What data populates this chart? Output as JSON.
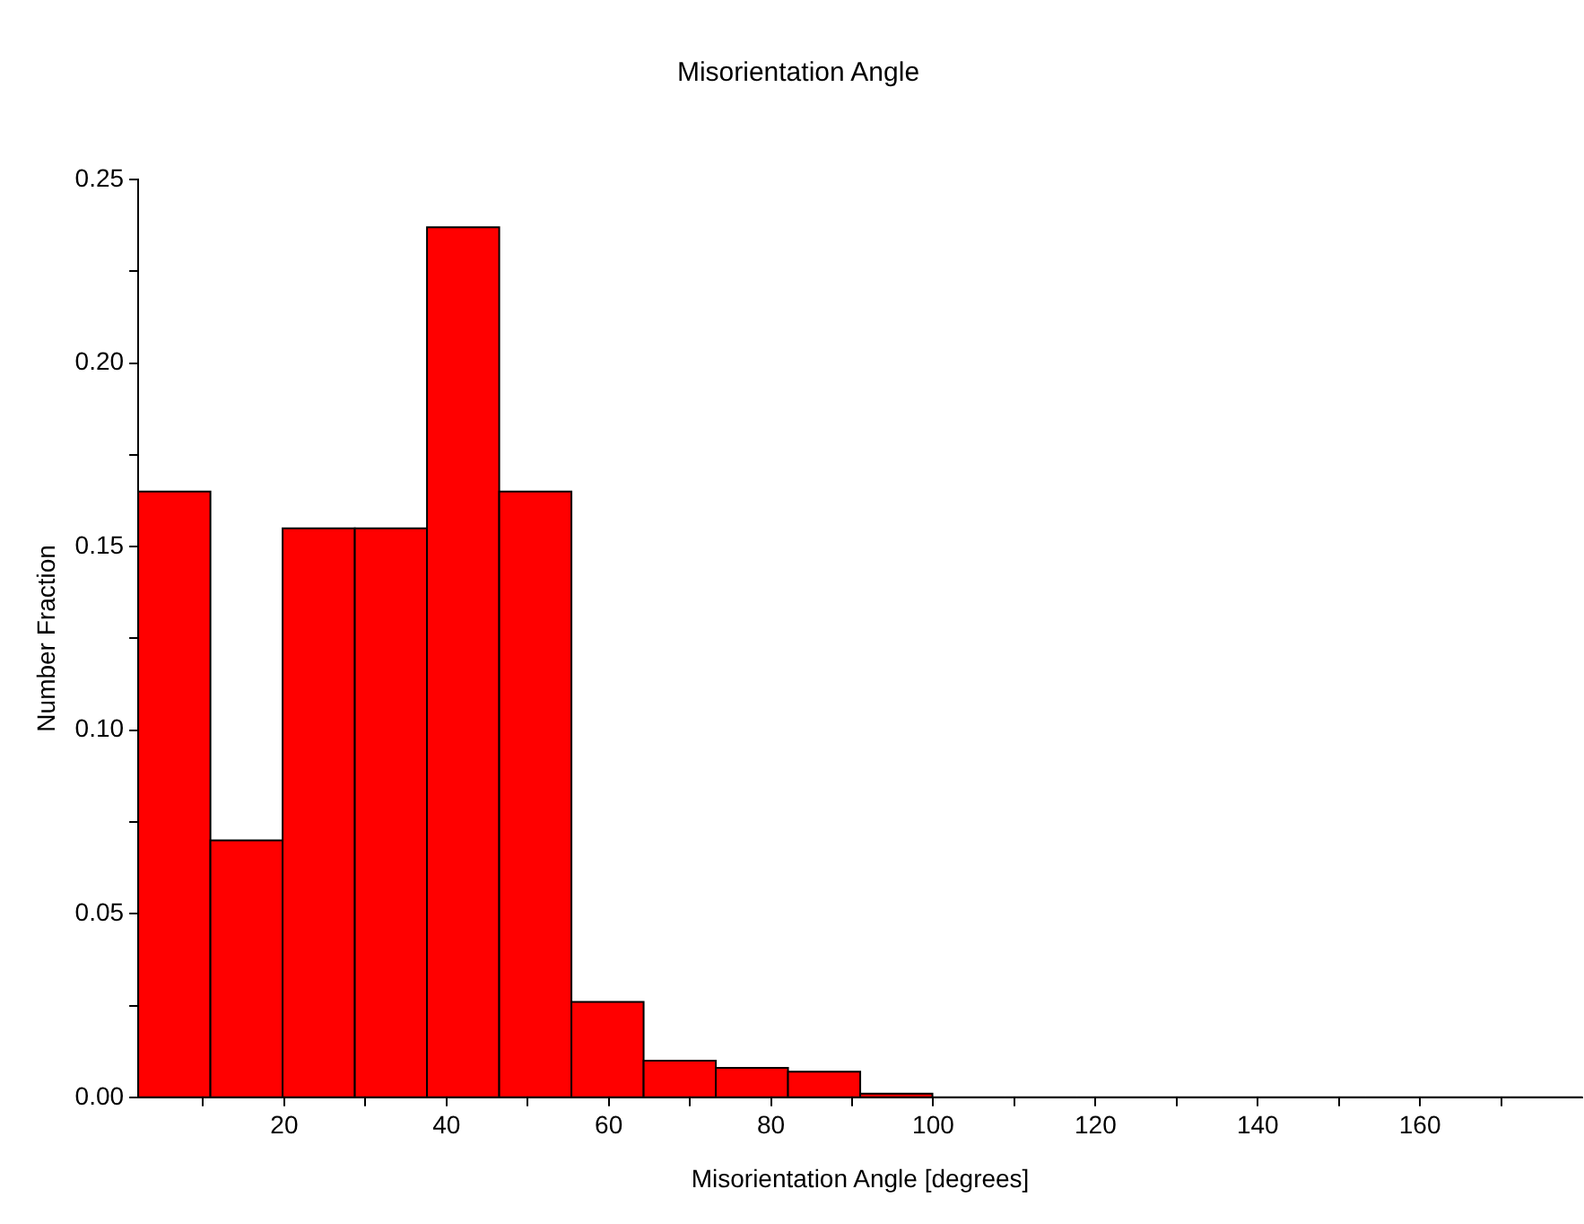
{
  "chart_data": {
    "type": "histogram",
    "title": "Misorientation Angle",
    "xlabel": "Misorientation Angle [degrees]",
    "ylabel": "Number Fraction",
    "bins": [
      2,
      10.9,
      19.8,
      28.7,
      37.6,
      46.5,
      55.4,
      64.3,
      73.2,
      82.1,
      91,
      99.9,
      108.8,
      117.7,
      126.6,
      135.5,
      144.4,
      153.3,
      162.2,
      171.1,
      180
    ],
    "values": [
      0.165,
      0.07,
      0.155,
      0.155,
      0.237,
      0.165,
      0.026,
      0.01,
      0.008,
      0.007,
      0.001,
      0,
      0,
      0,
      0,
      0,
      0,
      0,
      0,
      0
    ],
    "color": "#ff0000",
    "xlim": [
      2,
      180
    ],
    "xticks": [
      {
        "value": 10,
        "label": null
      },
      20,
      {
        "value": 30,
        "label": null
      },
      40,
      {
        "value": 50,
        "label": null
      },
      60,
      {
        "value": 70,
        "label": null
      },
      80,
      {
        "value": 90,
        "label": null
      },
      100,
      {
        "value": 110,
        "label": null
      },
      120,
      {
        "value": 130,
        "label": null
      },
      140,
      {
        "value": 150,
        "label": null
      },
      160,
      {
        "value": 170,
        "label": null
      }
    ],
    "ylim": [
      0,
      0.25
    ],
    "yticks": [
      {
        "value": 0,
        "label": "0.00"
      },
      {
        "value": 0.025,
        "label": null
      },
      {
        "value": 0.05,
        "label": "0.05"
      },
      {
        "value": 0.075,
        "label": null
      },
      {
        "value": 0.1,
        "label": "0.10"
      },
      {
        "value": 0.125,
        "label": null
      },
      {
        "value": 0.15,
        "label": "0.15"
      },
      {
        "value": 0.175,
        "label": null
      },
      {
        "value": 0.2,
        "label": "0.20"
      },
      {
        "value": 0.225,
        "label": null
      },
      {
        "value": 0.25,
        "label": "0.25"
      }
    ],
    "grid": false,
    "legend": false
  }
}
